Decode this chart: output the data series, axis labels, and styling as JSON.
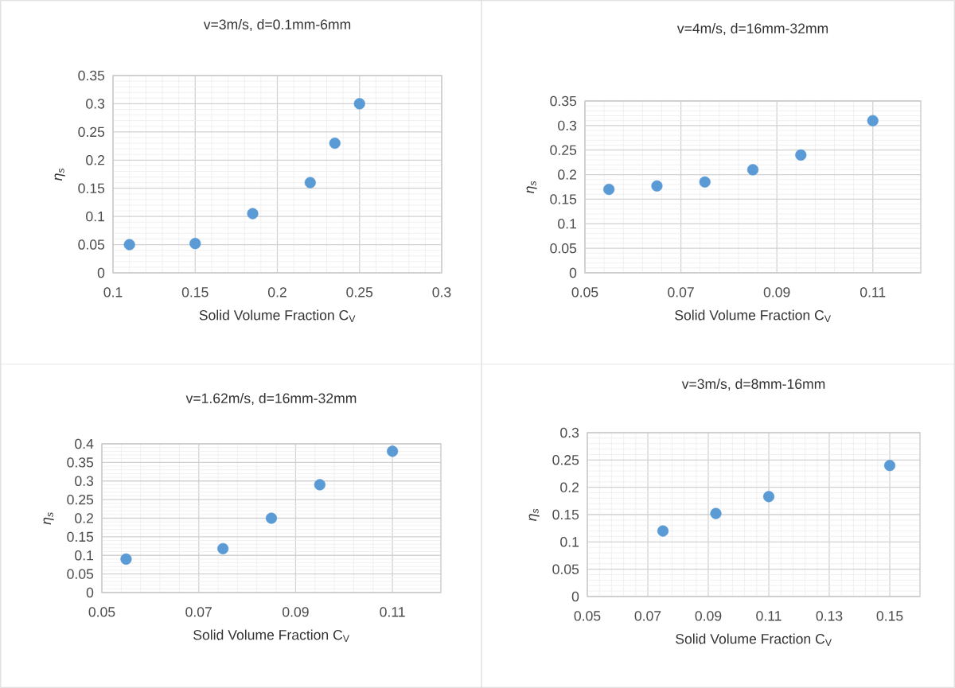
{
  "chart_data": [
    {
      "type": "scatter",
      "title": "v=3m/s, d=0.1mm-6mm",
      "xlabel": "Solid Volume Fraction C$_{V}$",
      "ylabel": "η$_{s}$",
      "color": "#5b9bd5",
      "marker": "circle",
      "grid": true,
      "x": [
        0.11,
        0.15,
        0.185,
        0.22,
        0.235,
        0.25
      ],
      "values": [
        0.05,
        0.052,
        0.105,
        0.16,
        0.23,
        0.3
      ],
      "xlim": [
        0.1,
        0.3
      ],
      "ylim": [
        0,
        0.35
      ],
      "xticks": [
        0.1,
        0.15,
        0.2,
        0.25,
        0.3
      ],
      "yticks": [
        0,
        0.05,
        0.1,
        0.15,
        0.2,
        0.25,
        0.3,
        0.35
      ]
    },
    {
      "type": "scatter",
      "title": "v=4m/s, d=16mm-32mm",
      "xlabel": "Solid Volume Fraction C$_{V}$",
      "ylabel": "η$_{s}$",
      "color": "#5b9bd5",
      "marker": "circle",
      "grid": true,
      "x": [
        0.055,
        0.065,
        0.075,
        0.085,
        0.095,
        0.11
      ],
      "values": [
        0.17,
        0.177,
        0.185,
        0.21,
        0.24,
        0.31
      ],
      "xlim": [
        0.05,
        0.12
      ],
      "ylim": [
        0,
        0.35
      ],
      "xticks": [
        0.05,
        0.07,
        0.09,
        0.11
      ],
      "yticks": [
        0,
        0.05,
        0.1,
        0.15,
        0.2,
        0.25,
        0.3,
        0.35
      ]
    },
    {
      "type": "scatter",
      "title": "v=1.62m/s, d=16mm-32mm",
      "xlabel": "Solid Volume Fraction C$_{V}$",
      "ylabel": "η$_{s}$",
      "color": "#5b9bd5",
      "marker": "circle",
      "grid": true,
      "x": [
        0.055,
        0.075,
        0.085,
        0.095,
        0.11
      ],
      "values": [
        0.09,
        0.118,
        0.2,
        0.29,
        0.38
      ],
      "xlim": [
        0.05,
        0.12
      ],
      "ylim": [
        0,
        0.4
      ],
      "xticks": [
        0.05,
        0.07,
        0.09,
        0.11
      ],
      "yticks": [
        0,
        0.05,
        0.1,
        0.15,
        0.2,
        0.25,
        0.3,
        0.35,
        0.4
      ]
    },
    {
      "type": "scatter",
      "title": "v=3m/s, d=8mm-16mm",
      "xlabel": "Solid Volume Fraction C$_{V}$",
      "ylabel": "η$_{s}$",
      "color": "#5b9bd5",
      "marker": "circle",
      "grid": true,
      "x": [
        0.075,
        0.0925,
        0.11,
        0.15
      ],
      "values": [
        0.12,
        0.152,
        0.183,
        0.24
      ],
      "xlim": [
        0.05,
        0.16
      ],
      "ylim": [
        0,
        0.3
      ],
      "xticks": [
        0.05,
        0.07,
        0.09,
        0.11,
        0.13,
        0.15
      ],
      "yticks": [
        0,
        0.05,
        0.1,
        0.15,
        0.2,
        0.25,
        0.3
      ]
    }
  ]
}
